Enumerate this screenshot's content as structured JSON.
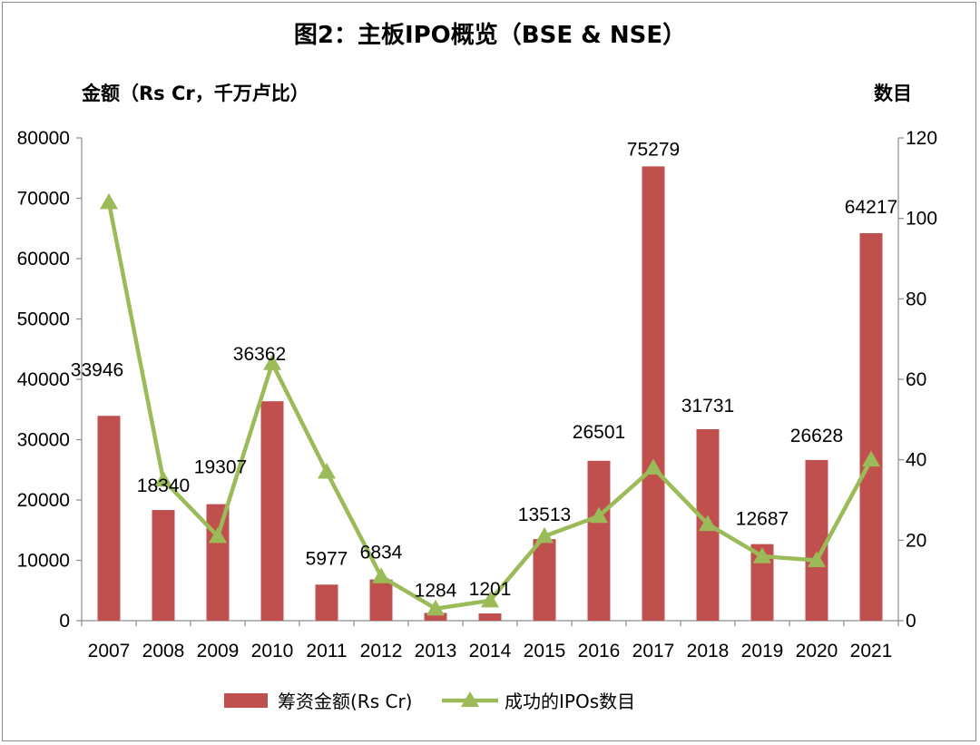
{
  "chart_data": {
    "type": "bar",
    "title": "图2：主板IPO概览（BSE & NSE）",
    "ylabel": "金额（Rs Cr，千万卢比）",
    "y2label": "数目",
    "categories": [
      "2007",
      "2008",
      "2009",
      "2010",
      "2011",
      "2012",
      "2013",
      "2014",
      "2015",
      "2016",
      "2017",
      "2018",
      "2019",
      "2020",
      "2021"
    ],
    "ylim": [
      0,
      80000
    ],
    "yticks": [
      0,
      10000,
      20000,
      30000,
      40000,
      50000,
      60000,
      70000,
      80000
    ],
    "y2lim": [
      0,
      120
    ],
    "y2ticks": [
      0,
      20,
      40,
      60,
      80,
      100,
      120
    ],
    "series": [
      {
        "name": "筹资金额(Rs Cr)",
        "type": "bar",
        "axis": "left",
        "color": "#c0504d",
        "values": [
          33946,
          18340,
          19307,
          36362,
          5977,
          6834,
          1284,
          1201,
          13513,
          26501,
          75279,
          31731,
          12687,
          26628,
          64217
        ],
        "data_labels": [
          "33946",
          "18340",
          "19307",
          "36362",
          "5977",
          "6834",
          "1284",
          "1201",
          "13513",
          "26501",
          "75279",
          "31731",
          "12687",
          "26628",
          "64217"
        ]
      },
      {
        "name": "成功的IPOs数目",
        "type": "line",
        "axis": "right",
        "color": "#9bbb59",
        "marker": "triangle",
        "values": [
          104,
          35,
          21,
          64,
          37,
          11,
          3,
          5,
          21,
          26,
          38,
          24,
          16,
          15,
          40
        ]
      }
    ],
    "grid": false,
    "legend_position": "bottom"
  }
}
